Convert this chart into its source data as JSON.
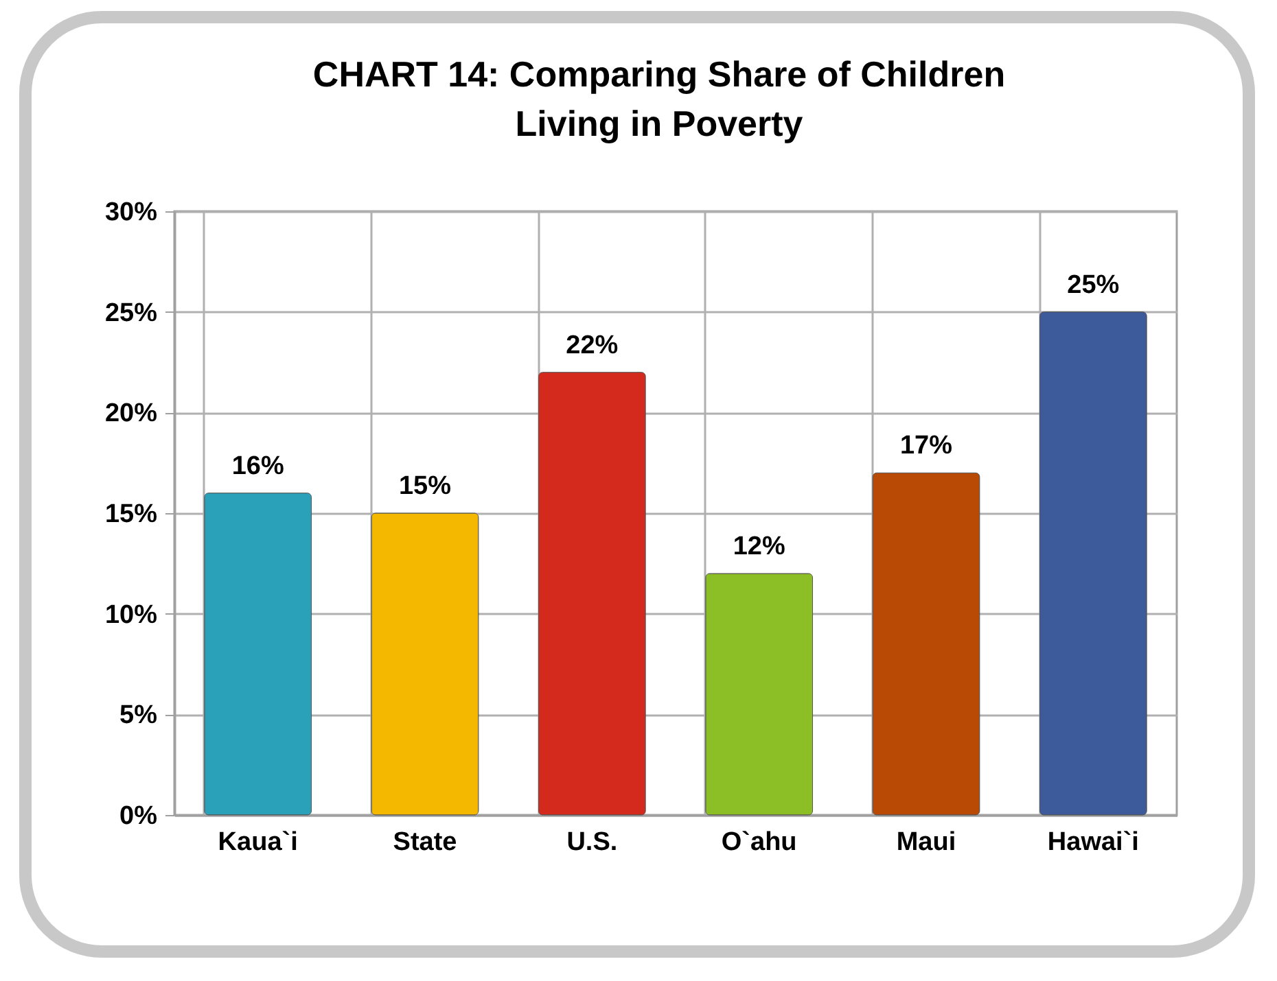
{
  "chart_data": {
    "type": "bar",
    "title": "CHART 14:  Comparing Share of Children Living in Poverty",
    "categories": [
      "Kaua`i",
      "State",
      "U.S.",
      "O`ahu",
      "Maui",
      "Hawai`i"
    ],
    "values": [
      16,
      15,
      22,
      12,
      17,
      25
    ],
    "colors": [
      "#2aa0b9",
      "#f5b800",
      "#d42a1e",
      "#8cbf26",
      "#b84a06",
      "#3d5a9a"
    ],
    "ylim": [
      0,
      30
    ],
    "yticks": [
      {
        "value": 0,
        "label": "0%"
      },
      {
        "value": 5,
        "label": "5%"
      },
      {
        "value": 10,
        "label": "10%"
      },
      {
        "value": 15,
        "label": "15%"
      },
      {
        "value": 20,
        "label": "20%"
      },
      {
        "value": 25,
        "label": "25%"
      },
      {
        "value": 30,
        "label": "30%"
      }
    ],
    "value_labels": [
      "16%",
      "15%",
      "22%",
      "12%",
      "17%",
      "25%"
    ],
    "grid": true
  }
}
